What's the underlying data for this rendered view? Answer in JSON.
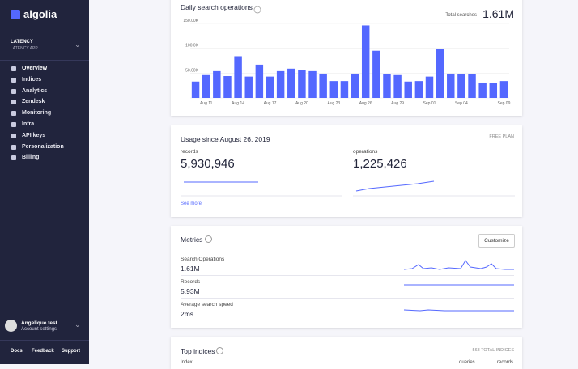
{
  "sidebar": {
    "brand": "algolia",
    "app_label": "LATENCY",
    "app_name": "LATENCY APP",
    "nav": [
      "Overview",
      "Indices",
      "Analytics",
      "Zendesk",
      "Monitoring",
      "Infra",
      "API keys",
      "Personalization",
      "Billing"
    ],
    "user_name": "Angelique test",
    "user_sub": "Account settings",
    "footer": [
      "Docs",
      "Feedback",
      "Support"
    ]
  },
  "chart_data": {
    "type": "bar",
    "title": "Daily search operations",
    "total_label": "Total searches",
    "total_value": "1.61M",
    "categories": [
      null,
      "Aug 11",
      null,
      null,
      "Aug 14",
      null,
      null,
      "Aug 17",
      null,
      null,
      "Aug 20",
      null,
      null,
      "Aug 23",
      null,
      null,
      "Aug 26",
      null,
      null,
      "Aug 29",
      null,
      null,
      "Sep 01",
      null,
      null,
      "Sep 04",
      null,
      null,
      null,
      "Sep 09"
    ],
    "values": [
      33000,
      46000,
      54000,
      44000,
      84000,
      43000,
      67000,
      43000,
      54000,
      59000,
      56000,
      54000,
      49000,
      34000,
      34000,
      49000,
      146000,
      95000,
      48000,
      46000,
      33000,
      34000,
      43000,
      98000,
      49000,
      48000,
      48000,
      31000,
      30000,
      34000
    ],
    "color": "#5468ff",
    "ylim": [
      0,
      150000
    ],
    "yticks": [
      0,
      {
        "value": 50000,
        "label": "50.00K"
      },
      {
        "value": 100000,
        "label": "100.0K"
      },
      {
        "value": 150000,
        "label": "150.00K"
      }
    ],
    "grid": true
  },
  "usage": {
    "title": "Usage since August 26, 2019",
    "plan": "FREE PLAN",
    "records_label": "records",
    "records_value": "5,930,946",
    "operations_label": "operations",
    "operations_value": "1,225,426",
    "see_more": "See more"
  },
  "metrics": {
    "title": "Metrics",
    "button": "Customize",
    "rows": [
      {
        "label": "Search Operations",
        "value": "1.61M"
      },
      {
        "label": "Records",
        "value": "5.93M"
      },
      {
        "label": "Average search speed",
        "value": "2ms"
      }
    ]
  },
  "top_indices": {
    "title": "Top indices",
    "total": "568 TOTAL INDICES",
    "columns": [
      "Index",
      "queries",
      "records"
    ]
  }
}
